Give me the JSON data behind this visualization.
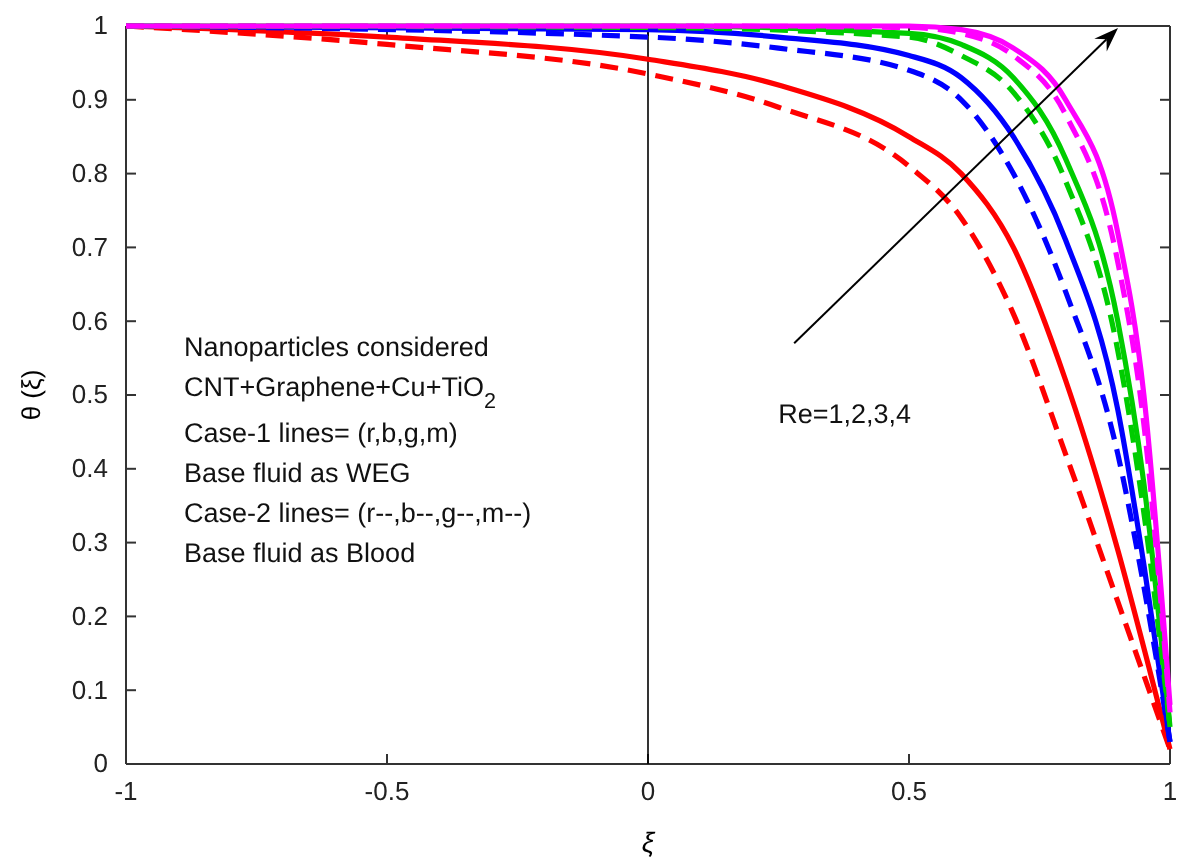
{
  "chart_data": {
    "type": "line",
    "xlabel": "ξ",
    "ylabel": "θ (ξ)",
    "xlim": [
      -1,
      1
    ],
    "ylim": [
      0,
      1
    ],
    "xticks": [
      -1,
      -0.5,
      0,
      0.5,
      1
    ],
    "yticks": [
      0,
      0.1,
      0.2,
      0.3,
      0.4,
      0.5,
      0.6,
      0.7,
      0.8,
      0.9,
      1
    ],
    "grid": false,
    "ref_lines": [
      {
        "axis": "x",
        "value": 0,
        "color": "#000000"
      }
    ],
    "annotations": [
      "Nanoparticles considered",
      "CNT+Graphene+Cu+TiO$_{2}$",
      "Case-1 lines= (r,b,g,m)",
      "Base fluid as WEG",
      "Case-2 lines= (r--,b--,g--,m--)",
      "Base fluid as Blood",
      "Re=1,2,3,4"
    ],
    "series": [
      {
        "color": "#ff0000",
        "line_style": "solid",
        "x": [
          -1,
          -0.5,
          0,
          0.25,
          0.5,
          0.6,
          0.7,
          0.8,
          0.9,
          0.96,
          1
        ],
        "values": [
          1,
          0.985,
          0.955,
          0.92,
          0.85,
          0.8,
          0.7,
          0.52,
          0.29,
          0.13,
          0.02
        ]
      },
      {
        "color": "#ff0000",
        "line_style": "dashed",
        "x": [
          -1,
          -0.5,
          0,
          0.25,
          0.5,
          0.6,
          0.7,
          0.8,
          0.9,
          0.96,
          1
        ],
        "values": [
          1,
          0.975,
          0.935,
          0.89,
          0.81,
          0.74,
          0.61,
          0.42,
          0.22,
          0.1,
          0.02
        ]
      },
      {
        "color": "#0000ff",
        "line_style": "solid",
        "x": [
          -1,
          0,
          0.25,
          0.5,
          0.6,
          0.7,
          0.8,
          0.9,
          0.95,
          1
        ],
        "values": [
          1,
          0.995,
          0.985,
          0.96,
          0.93,
          0.85,
          0.71,
          0.48,
          0.27,
          0.03
        ]
      },
      {
        "color": "#0000ff",
        "line_style": "dashed",
        "x": [
          -1,
          0,
          0.25,
          0.5,
          0.6,
          0.7,
          0.8,
          0.9,
          0.95,
          1
        ],
        "values": [
          1,
          0.985,
          0.97,
          0.94,
          0.9,
          0.8,
          0.64,
          0.42,
          0.24,
          0.03
        ]
      },
      {
        "color": "#00cc00",
        "line_style": "solid",
        "x": [
          -1,
          0,
          0.5,
          0.6,
          0.7,
          0.8,
          0.9,
          0.95,
          1
        ],
        "values": [
          1,
          1,
          0.99,
          0.975,
          0.93,
          0.82,
          0.6,
          0.38,
          0.05
        ]
      },
      {
        "color": "#00cc00",
        "line_style": "dashed",
        "x": [
          -1,
          0,
          0.5,
          0.6,
          0.7,
          0.8,
          0.9,
          0.95,
          1
        ],
        "values": [
          1,
          0.998,
          0.985,
          0.96,
          0.91,
          0.79,
          0.56,
          0.34,
          0.05
        ]
      },
      {
        "color": "#ff00ff",
        "line_style": "solid",
        "x": [
          -1,
          0,
          0.5,
          0.6,
          0.7,
          0.8,
          0.9,
          0.95,
          1
        ],
        "values": [
          1,
          1,
          1,
          0.995,
          0.97,
          0.9,
          0.72,
          0.5,
          0.08
        ]
      },
      {
        "color": "#ff00ff",
        "line_style": "dashed",
        "x": [
          -1,
          0,
          0.5,
          0.6,
          0.7,
          0.8,
          0.9,
          0.95,
          1
        ],
        "values": [
          1,
          1,
          0.998,
          0.99,
          0.96,
          0.88,
          0.68,
          0.46,
          0.07
        ]
      }
    ]
  }
}
